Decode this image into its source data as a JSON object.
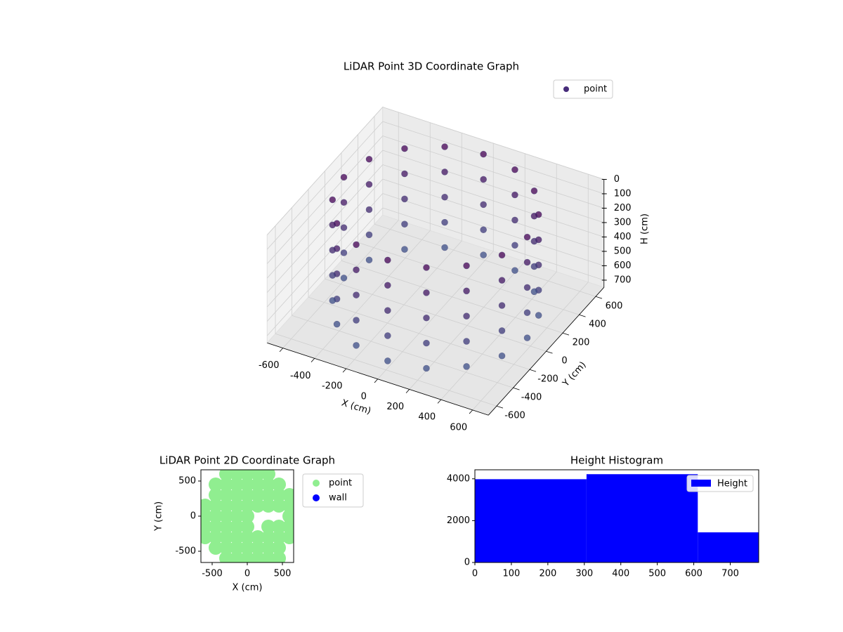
{
  "chart_data": [
    {
      "type": "scatter3d",
      "title": "LiDAR Point 3D Coordinate Graph",
      "xlabel": "X (cm)",
      "ylabel": "Y (cm)",
      "zlabel": "H (cm)",
      "xlim": [
        -700,
        700
      ],
      "ylim": [
        -700,
        700
      ],
      "zlim": [
        0,
        750
      ],
      "z_inverted": true,
      "xticks": [
        -600,
        -400,
        -200,
        0,
        200,
        400,
        600
      ],
      "yticks": [
        -600,
        -400,
        -200,
        0,
        200,
        400,
        600
      ],
      "zticks": [
        0,
        100,
        200,
        300,
        400,
        500,
        600,
        700
      ],
      "colormap": "viridis",
      "legend": "upper right",
      "series": [
        {
          "name": "point",
          "color": "#472c7a",
          "x": [
            580,
            536,
            410,
            222,
            0,
            -222,
            -410,
            -536,
            -580,
            -536,
            -410,
            -222,
            0,
            222,
            410,
            536,
            580,
            536,
            410,
            222,
            0,
            -222,
            -410,
            -536,
            -580,
            -536,
            -410,
            -222,
            0,
            222,
            410,
            536,
            580,
            536,
            410,
            222,
            0,
            -222,
            -410,
            -536,
            -580,
            -536,
            -410,
            -222,
            0,
            222,
            410,
            536,
            580,
            536,
            410,
            222,
            0,
            -222,
            -410,
            -536,
            -580,
            -536,
            -410,
            -222,
            0,
            222,
            410,
            536,
            580,
            536,
            410,
            222,
            0,
            -222,
            -410,
            -536,
            -580,
            -536,
            -410,
            -222,
            0,
            222,
            410,
            536
          ],
          "y": [
            0,
            222,
            410,
            536,
            580,
            536,
            410,
            222,
            0,
            -222,
            -410,
            -536,
            -580,
            -536,
            -410,
            -222,
            0,
            222,
            410,
            536,
            580,
            536,
            410,
            222,
            0,
            -222,
            -410,
            -536,
            -580,
            -536,
            -410,
            -222,
            0,
            222,
            410,
            536,
            580,
            536,
            410,
            222,
            0,
            -222,
            -410,
            -536,
            -580,
            -536,
            -410,
            -222,
            0,
            222,
            410,
            536,
            580,
            536,
            410,
            222,
            0,
            -222,
            -410,
            -536,
            -580,
            -536,
            -410,
            -222,
            0,
            222,
            410,
            536,
            580,
            536,
            410,
            222,
            0,
            -222,
            -410,
            -536,
            -580,
            -536,
            -410,
            -222
          ],
          "z": [
            0,
            0,
            0,
            0,
            0,
            0,
            0,
            0,
            0,
            0,
            0,
            0,
            0,
            0,
            0,
            0,
            175,
            175,
            175,
            175,
            175,
            175,
            175,
            175,
            175,
            175,
            175,
            175,
            175,
            175,
            175,
            175,
            350,
            350,
            350,
            350,
            350,
            350,
            350,
            350,
            350,
            350,
            350,
            350,
            350,
            350,
            350,
            350,
            525,
            525,
            525,
            525,
            525,
            525,
            525,
            525,
            525,
            525,
            525,
            525,
            525,
            525,
            525,
            525,
            700,
            700,
            700,
            700,
            700,
            700,
            700,
            700,
            700,
            700,
            700,
            700,
            700,
            700,
            700,
            700
          ]
        }
      ]
    },
    {
      "type": "scatter",
      "title": "LiDAR Point 2D Coordinate Graph",
      "xlabel": "X (cm)",
      "ylabel": "Y (cm)",
      "xlim": [
        -660,
        660
      ],
      "ylim": [
        -660,
        660
      ],
      "xticks": [
        -500,
        0,
        500
      ],
      "yticks": [
        -500,
        0,
        500
      ],
      "legend": "outside right",
      "series": [
        {
          "name": "point",
          "color": "#90ee90",
          "x": [
            -300,
            -150,
            0,
            150,
            300,
            -450,
            -300,
            -150,
            0,
            150,
            300,
            450,
            -450,
            -300,
            -150,
            0,
            150,
            300,
            450,
            600,
            -600,
            -450,
            -300,
            -150,
            0,
            150,
            300,
            450,
            600,
            -600,
            -450,
            -300,
            -150,
            0,
            600,
            -600,
            -450,
            -300,
            -150,
            0,
            300,
            450,
            600,
            -600,
            -450,
            -300,
            -150,
            0,
            150,
            300,
            450,
            600,
            -450,
            -300,
            -150,
            0,
            150,
            300,
            450,
            -300,
            -150,
            0,
            150,
            300,
            450
          ],
          "y": [
            600,
            600,
            600,
            600,
            600,
            450,
            450,
            450,
            450,
            450,
            450,
            450,
            300,
            300,
            300,
            300,
            300,
            300,
            300,
            300,
            150,
            150,
            150,
            150,
            150,
            150,
            150,
            150,
            150,
            0,
            0,
            0,
            0,
            0,
            0,
            -150,
            -150,
            -150,
            -150,
            -150,
            -150,
            -150,
            -150,
            -300,
            -300,
            -300,
            -300,
            -300,
            -300,
            -300,
            -300,
            -300,
            -450,
            -450,
            -450,
            -450,
            -450,
            -450,
            -450,
            -600,
            -600,
            -600,
            -600,
            -600,
            -600
          ]
        },
        {
          "name": "wall",
          "color": "#0000ff",
          "x": [],
          "y": []
        }
      ]
    },
    {
      "type": "histogram",
      "title": "Height Histogram",
      "name": "Height",
      "color": "#0000ff",
      "bins": [
        0,
        306,
        611,
        778
      ],
      "counts": [
        3980,
        4220,
        1440
      ],
      "xlim": [
        0,
        778
      ],
      "ylim": [
        0,
        4430
      ],
      "xticks": [
        0,
        100,
        200,
        300,
        400,
        500,
        600,
        700
      ],
      "yticks": [
        0,
        2000,
        4000
      ],
      "legend": "upper right"
    }
  ]
}
